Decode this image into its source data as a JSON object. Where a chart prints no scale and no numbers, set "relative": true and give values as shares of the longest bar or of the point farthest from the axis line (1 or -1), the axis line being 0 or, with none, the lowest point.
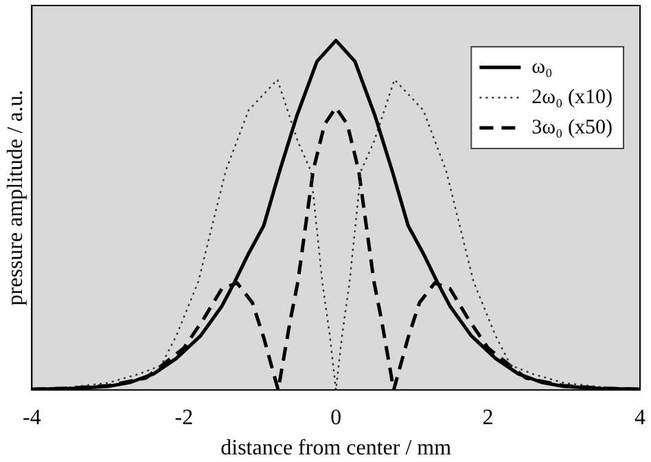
{
  "chart_data": {
    "type": "line",
    "xlabel": "distance from center / mm",
    "ylabel": "pressure amplitude / a.u.",
    "relative": true,
    "xlim": [
      -4,
      4
    ],
    "xticks": [
      -4,
      -2,
      0,
      2,
      4
    ],
    "grid": false,
    "legend": "top right",
    "marker": "none",
    "series": [
      {
        "name": "ω₀",
        "color": "#000000",
        "line_style": "solid",
        "x": [
          -4,
          -3.5,
          -3,
          -2.7,
          -2.4,
          -2.1,
          -1.78,
          -1.5,
          -1.33,
          -1.15,
          -0.95,
          -0.74,
          -0.51,
          -0.25,
          0,
          0.25,
          0.51,
          0.74,
          0.95,
          1.15,
          1.33,
          1.5,
          1.78,
          2.1,
          2.4,
          2.7,
          3,
          3.5,
          4
        ],
        "values": [
          0.002,
          0.004,
          0.01,
          0.022,
          0.046,
          0.09,
          0.155,
          0.24,
          0.31,
          0.39,
          0.47,
          0.627,
          0.787,
          0.94,
          1,
          0.94,
          0.787,
          0.627,
          0.47,
          0.39,
          0.31,
          0.24,
          0.155,
          0.09,
          0.046,
          0.022,
          0.01,
          0.004,
          0.002
        ]
      },
      {
        "name": "2ω₀ (x10)",
        "color": "#333333",
        "line_style": "dotted",
        "x": [
          -4,
          -3.5,
          -3,
          -2.6,
          -2.3,
          -2.1,
          -1.81,
          -1.45,
          -1.15,
          -0.77,
          -0.5,
          -0.33,
          -0.18,
          -0.08,
          0,
          0.08,
          0.18,
          0.33,
          0.5,
          0.77,
          1.15,
          1.45,
          1.81,
          2.1,
          2.3,
          2.6,
          3,
          3.5,
          4
        ],
        "values": [
          0.003,
          0.008,
          0.02,
          0.045,
          0.07,
          0.155,
          0.31,
          0.627,
          0.8,
          0.888,
          0.71,
          0.627,
          0.31,
          0.155,
          0,
          0.155,
          0.31,
          0.627,
          0.71,
          0.888,
          0.8,
          0.627,
          0.31,
          0.155,
          0.07,
          0.045,
          0.02,
          0.008,
          0.003
        ]
      },
      {
        "name": "3ω₀ (x50)",
        "color": "#000000",
        "line_style": "dashed",
        "x": [
          -4,
          -3.5,
          -3,
          -2.5,
          -2,
          -1.75,
          -1.5,
          -1.3,
          -1.1,
          -0.95,
          -0.76,
          -0.6,
          -0.5,
          -0.3,
          -0.15,
          0,
          0.15,
          0.3,
          0.5,
          0.6,
          0.76,
          0.95,
          1.1,
          1.3,
          1.5,
          1.75,
          2,
          2.5,
          3,
          3.5,
          4
        ],
        "values": [
          0.002,
          0.005,
          0.012,
          0.034,
          0.12,
          0.2,
          0.29,
          0.306,
          0.25,
          0.15,
          0,
          0.2,
          0.31,
          0.627,
          0.76,
          0.808,
          0.76,
          0.627,
          0.31,
          0.2,
          0,
          0.15,
          0.25,
          0.306,
          0.29,
          0.2,
          0.12,
          0.034,
          0.012,
          0.005,
          0.002
        ]
      }
    ]
  }
}
